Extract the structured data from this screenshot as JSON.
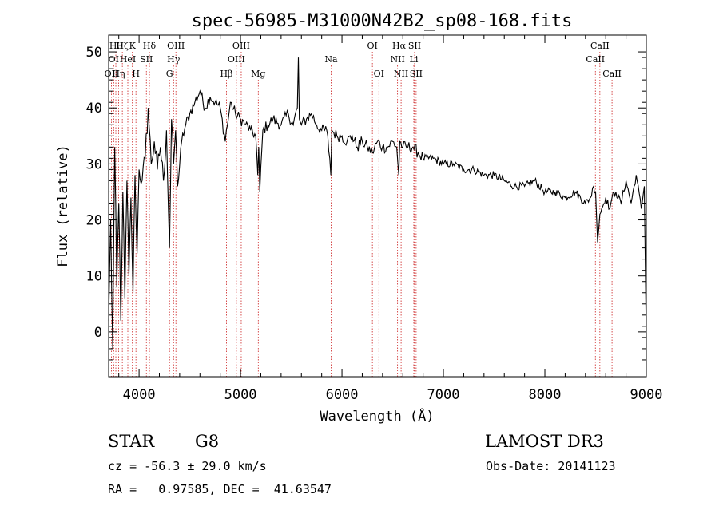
{
  "chart_data": {
    "type": "line",
    "title": "spec-56985-M31000N42B2_sp08-168.fits",
    "xlabel": "Wavelength (Å)",
    "ylabel": "Flux (relative)",
    "xlim": [
      3700,
      9000
    ],
    "ylim": [
      -8,
      53
    ],
    "xticks": [
      4000,
      5000,
      6000,
      7000,
      8000,
      9000
    ],
    "yticks": [
      0,
      10,
      20,
      30,
      40,
      50
    ],
    "series": [
      {
        "name": "flux",
        "x": [
          3700,
          3720,
          3740,
          3760,
          3780,
          3800,
          3820,
          3840,
          3860,
          3880,
          3900,
          3920,
          3940,
          3960,
          3980,
          4000,
          4030,
          4060,
          4090,
          4120,
          4150,
          4180,
          4210,
          4240,
          4270,
          4300,
          4320,
          4340,
          4360,
          4380,
          4420,
          4460,
          4500,
          4550,
          4600,
          4650,
          4700,
          4750,
          4800,
          4850,
          4860,
          4880,
          4900,
          4950,
          5000,
          5050,
          5100,
          5150,
          5170,
          5180,
          5190,
          5220,
          5270,
          5320,
          5400,
          5470,
          5520,
          5560,
          5570,
          5580,
          5600,
          5650,
          5700,
          5750,
          5800,
          5850,
          5880,
          5890,
          5900,
          5950,
          6000,
          6050,
          6100,
          6150,
          6200,
          6250,
          6300,
          6350,
          6400,
          6450,
          6500,
          6540,
          6560,
          6570,
          6600,
          6650,
          6700,
          6750,
          6800,
          6900,
          7000,
          7100,
          7200,
          7300,
          7400,
          7500,
          7600,
          7700,
          7800,
          7900,
          8000,
          8100,
          8200,
          8300,
          8400,
          8450,
          8480,
          8500,
          8520,
          8542,
          8560,
          8600,
          8640,
          8662,
          8700,
          8750,
          8800,
          8850,
          8900,
          8950,
          8980,
          9000
        ],
        "values": [
          2,
          20,
          -3,
          33,
          8,
          23,
          2,
          25,
          6,
          27,
          10,
          24,
          7,
          28,
          14,
          29,
          27,
          31,
          40,
          30,
          34,
          29,
          33,
          27,
          36,
          15,
          38,
          30,
          36,
          26,
          34,
          37,
          39,
          41,
          43,
          40,
          42,
          41,
          40,
          34,
          36,
          38,
          41,
          39,
          38,
          37,
          36,
          35,
          28,
          33,
          25,
          36,
          37,
          38,
          37,
          39,
          37,
          40,
          49,
          38,
          37,
          38,
          39,
          37,
          36,
          36,
          31,
          28,
          36,
          35,
          35,
          34,
          35,
          33,
          34,
          33,
          32,
          34,
          33,
          33,
          34,
          33,
          28,
          34,
          33,
          33,
          33,
          32,
          31,
          31,
          30,
          30,
          29,
          29,
          28,
          28,
          27,
          26,
          26,
          27,
          25,
          25,
          24,
          25,
          23,
          24,
          26,
          25,
          16,
          21,
          22,
          24,
          22,
          24,
          25,
          23,
          27,
          23,
          28,
          22,
          26,
          -1
        ]
      }
    ],
    "line_markers": [
      {
        "wavelength": 3727,
        "labels": [
          "OII"
        ],
        "row": 3
      },
      {
        "wavelength": 3750,
        "labels": [
          "OI"
        ],
        "row": 2
      },
      {
        "wavelength": 3771,
        "labels": [
          "Hθ"
        ],
        "row": 1
      },
      {
        "wavelength": 3798,
        "labels": [
          "Hη"
        ],
        "row": 3
      },
      {
        "wavelength": 3835,
        "labels": [
          "Hζ"
        ],
        "row": 1
      },
      {
        "wavelength": 3889,
        "labels": [
          "HeI"
        ],
        "row": 2
      },
      {
        "wavelength": 3934,
        "labels": [
          "K"
        ],
        "row": 1
      },
      {
        "wavelength": 3969,
        "labels": [
          "H"
        ],
        "row": 3
      },
      {
        "wavelength": 4072,
        "labels": [
          "SII"
        ],
        "row": 2
      },
      {
        "wavelength": 4102,
        "labels": [
          "Hδ"
        ],
        "row": 1
      },
      {
        "wavelength": 4300,
        "labels": [
          "G"
        ],
        "row": 3
      },
      {
        "wavelength": 4340,
        "labels": [
          "Hγ"
        ],
        "row": 2
      },
      {
        "wavelength": 4363,
        "labels": [
          "OIII"
        ],
        "row": 1
      },
      {
        "wavelength": 4861,
        "labels": [
          "Hβ"
        ],
        "row": 3
      },
      {
        "wavelength": 4959,
        "labels": [
          "OIII"
        ],
        "row": 2
      },
      {
        "wavelength": 5007,
        "labels": [
          "OIII"
        ],
        "row": 1
      },
      {
        "wavelength": 5175,
        "labels": [
          "Mg"
        ],
        "row": 3
      },
      {
        "wavelength": 5893,
        "labels": [
          "Na"
        ],
        "row": 2
      },
      {
        "wavelength": 6300,
        "labels": [
          "OI"
        ],
        "row": 1
      },
      {
        "wavelength": 6364,
        "labels": [
          "OI"
        ],
        "row": 3
      },
      {
        "wavelength": 6548,
        "labels": [
          "NII"
        ],
        "row": 2
      },
      {
        "wavelength": 6563,
        "labels": [
          "Hα"
        ],
        "row": 1
      },
      {
        "wavelength": 6583,
        "labels": [
          "NII"
        ],
        "row": 3
      },
      {
        "wavelength": 6708,
        "labels": [
          "Li"
        ],
        "row": 2
      },
      {
        "wavelength": 6716,
        "labels": [
          "SII"
        ],
        "row": 1
      },
      {
        "wavelength": 6731,
        "labels": [
          "SII"
        ],
        "row": 3
      },
      {
        "wavelength": 8498,
        "labels": [
          "CaII"
        ],
        "row": 2
      },
      {
        "wavelength": 8542,
        "labels": [
          "CaII"
        ],
        "row": 1
      },
      {
        "wavelength": 8662,
        "labels": [
          "CaII"
        ],
        "row": 3
      }
    ]
  },
  "info": {
    "class_type": "STAR",
    "subclass": "G8",
    "survey": "LAMOST DR3",
    "redshift_line": "cz = -56.3 ± 29.0 km/s",
    "obs_date_line": "Obs-Date: 20141123",
    "coords_line": "RA =   0.97585, DEC =  41.63547"
  },
  "colors": {
    "marker": "#cc2222",
    "line": "#000000"
  }
}
